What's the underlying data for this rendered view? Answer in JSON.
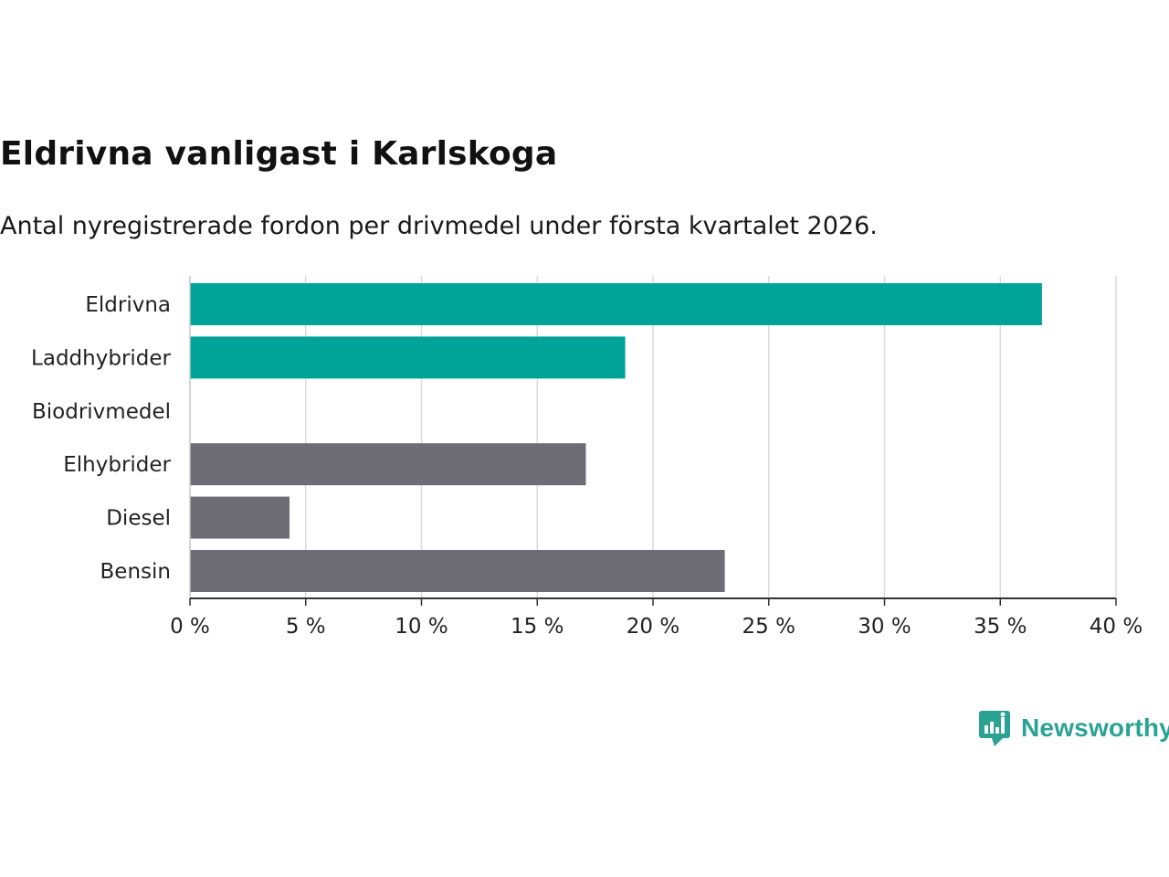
{
  "header": {
    "title": "Eldrivna vanligast i Karlskoga",
    "subtitle": "Antal nyregistrerade fordon per drivmedel under första kvartalet 2026."
  },
  "brand": {
    "name": "Newsworthy",
    "icon": "newsworthy-logo-icon",
    "color": "#2aa394"
  },
  "chart_data": {
    "type": "bar",
    "orientation": "horizontal",
    "title": "Eldrivna vanligast i Karlskoga",
    "subtitle": "Antal nyregistrerade fordon per drivmedel under första kvartalet 2026.",
    "xlabel": "",
    "ylabel": "",
    "categories": [
      "Eldrivna",
      "Laddhybrider",
      "Biodrivmedel",
      "Elhybrider",
      "Diesel",
      "Bensin"
    ],
    "values": [
      36.8,
      18.8,
      0,
      17.1,
      4.3,
      23.1
    ],
    "colors": [
      "#00a398",
      "#00a398",
      "#00a398",
      "#6e6d75",
      "#6e6d75",
      "#6e6d75"
    ],
    "xlim": [
      0,
      40
    ],
    "xticks": [
      0,
      5,
      10,
      15,
      20,
      25,
      30,
      35,
      40
    ],
    "tick_labels": [
      "0 %",
      "5 %",
      "10 %",
      "15 %",
      "20 %",
      "25 %",
      "30 %",
      "35 %",
      "40 %"
    ],
    "grid": true
  }
}
